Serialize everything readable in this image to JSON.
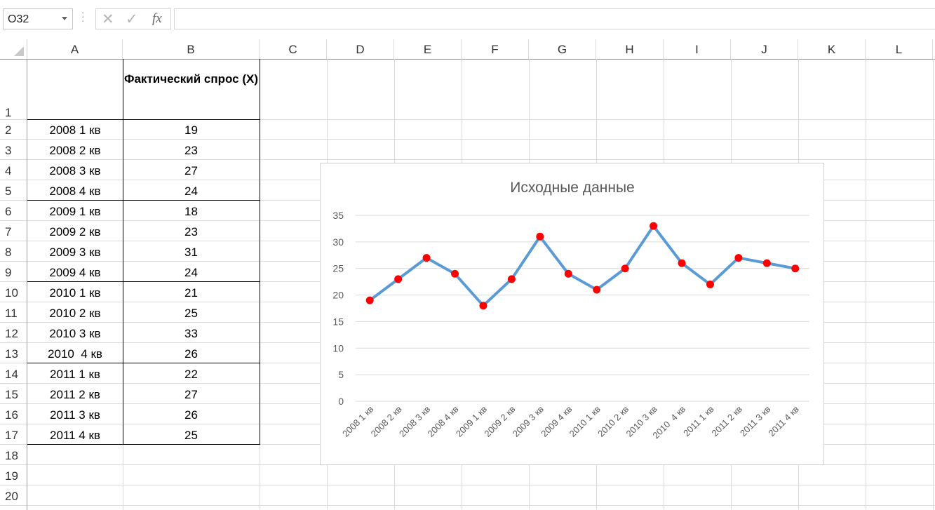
{
  "formula_bar": {
    "name_box": "O32",
    "cancel_icon": "close-icon",
    "enter_icon": "check-icon",
    "fx_label": "fx",
    "formula": ""
  },
  "columns": [
    "A",
    "B",
    "C",
    "D",
    "E",
    "F",
    "G",
    "H",
    "I",
    "J",
    "K",
    "L"
  ],
  "rows": [
    "1",
    "2",
    "3",
    "4",
    "5",
    "6",
    "7",
    "8",
    "9",
    "10",
    "11",
    "12",
    "13",
    "14",
    "15",
    "16",
    "17",
    "18",
    "19",
    "20"
  ],
  "table": {
    "header_b": "Фактический спрос (X)",
    "periods": [
      "2008 1 кв",
      "2008 2 кв",
      "2008 3 кв",
      "2008 4 кв",
      "2009 1 кв",
      "2009 2 кв",
      "2009 3 кв",
      "2009 4 кв",
      "2010 1 кв",
      "2010 2 кв",
      "2010 3 кв",
      "2010  4 кв",
      "2011 1 кв",
      "2011 2 кв",
      "2011 3 кв",
      "2011 4 кв"
    ],
    "values": [
      19,
      23,
      27,
      24,
      18,
      23,
      31,
      24,
      21,
      25,
      33,
      26,
      22,
      27,
      26,
      25
    ]
  },
  "chart_data": {
    "type": "line",
    "title": "Исходные данные",
    "categories": [
      "2008 1 кв",
      "2008 2 кв",
      "2008 3 кв",
      "2008 4 кв",
      "2009 1 кв",
      "2009 2 кв",
      "2009 3 кв",
      "2009 4 кв",
      "2010 1 кв",
      "2010 2 кв",
      "2010 3 кв",
      "2010  4 кв",
      "2011 1 кв",
      "2011 2 кв",
      "2011 3 кв",
      "2011 4 кв"
    ],
    "series": [
      {
        "values": [
          19,
          23,
          27,
          24,
          18,
          23,
          31,
          24,
          21,
          25,
          33,
          26,
          22,
          27,
          26,
          25
        ]
      }
    ],
    "ylim": [
      0,
      35
    ],
    "yticks": [
      0,
      5,
      10,
      15,
      20,
      25,
      30,
      35
    ],
    "grid": true,
    "line_color": "#5B9BD5",
    "marker_color": "#FF0000"
  }
}
